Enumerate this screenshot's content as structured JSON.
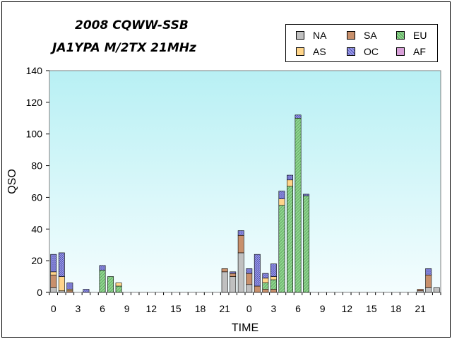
{
  "title_line1": "2008 CQWW-SSB",
  "title_line2": "JA1YPA M/2TX  21MHz",
  "legend": [
    {
      "name": "NA",
      "color": "#c0c0c0",
      "pattern": "solid"
    },
    {
      "name": "SA",
      "color": "#c8906c",
      "pattern": "solid"
    },
    {
      "name": "EU",
      "color": "#8fd48f",
      "pattern": "hatch"
    },
    {
      "name": "AS",
      "color": "#ffd58a",
      "pattern": "solid"
    },
    {
      "name": "OC",
      "color": "#9b9bea",
      "pattern": "cross"
    },
    {
      "name": "AF",
      "color": "#d8a0d8",
      "pattern": "solid"
    }
  ],
  "chart_data": {
    "type": "bar",
    "stacked": true,
    "xlabel": "TIME",
    "ylabel": "QSO",
    "ylim": [
      0,
      140
    ],
    "yticks": [
      0,
      20,
      40,
      60,
      80,
      100,
      120,
      140
    ],
    "xtick_labels": [
      "0",
      "3",
      "6",
      "9",
      "12",
      "15",
      "18",
      "21",
      "0",
      "3",
      "6",
      "9",
      "12",
      "15",
      "18",
      "21"
    ],
    "categories": [
      "0",
      "1",
      "2",
      "3",
      "4",
      "5",
      "6",
      "7",
      "8",
      "9",
      "10",
      "11",
      "12",
      "13",
      "14",
      "15",
      "16",
      "17",
      "18",
      "19",
      "20",
      "21",
      "22",
      "23",
      "0",
      "1",
      "2",
      "3",
      "4",
      "5",
      "6",
      "7",
      "8",
      "9",
      "10",
      "11",
      "12",
      "13",
      "14",
      "15",
      "16",
      "17",
      "18",
      "19",
      "20",
      "21",
      "22",
      "23"
    ],
    "series": [
      {
        "name": "NA",
        "values": [
          3,
          1,
          0,
          0,
          0,
          0,
          0,
          0,
          0,
          0,
          0,
          0,
          0,
          0,
          0,
          0,
          0,
          0,
          0,
          0,
          0,
          13,
          10,
          25,
          5,
          0,
          0,
          0,
          0,
          0,
          0,
          0,
          0,
          0,
          0,
          0,
          0,
          0,
          0,
          0,
          0,
          0,
          0,
          0,
          0,
          1,
          3,
          3
        ]
      },
      {
        "name": "SA",
        "values": [
          8,
          0,
          1,
          0,
          0,
          0,
          0,
          0,
          0,
          0,
          0,
          0,
          0,
          0,
          0,
          0,
          0,
          0,
          0,
          0,
          0,
          2,
          2,
          11,
          7,
          4,
          2,
          2,
          0,
          0,
          0,
          0,
          0,
          0,
          0,
          0,
          0,
          0,
          0,
          0,
          0,
          0,
          0,
          0,
          0,
          1,
          8,
          0
        ]
      },
      {
        "name": "EU",
        "values": [
          0,
          0,
          0,
          0,
          0,
          0,
          14,
          10,
          4,
          0,
          0,
          0,
          0,
          0,
          0,
          0,
          0,
          0,
          0,
          0,
          0,
          0,
          0,
          0,
          0,
          0,
          4,
          6,
          55,
          67,
          110,
          61,
          0,
          0,
          0,
          0,
          0,
          0,
          0,
          0,
          0,
          0,
          0,
          0,
          0,
          0,
          0,
          0
        ]
      },
      {
        "name": "AS",
        "values": [
          2,
          9,
          1,
          0,
          0,
          0,
          0,
          0,
          2,
          0,
          0,
          0,
          0,
          0,
          0,
          0,
          0,
          0,
          0,
          0,
          0,
          0,
          0,
          0,
          0,
          0,
          3,
          2,
          4,
          4,
          0,
          0,
          0,
          0,
          0,
          0,
          0,
          0,
          0,
          0,
          0,
          0,
          0,
          0,
          0,
          0,
          0,
          0
        ]
      },
      {
        "name": "OC",
        "values": [
          11,
          15,
          4,
          0,
          2,
          0,
          3,
          0,
          0,
          0,
          0,
          0,
          0,
          0,
          0,
          0,
          0,
          0,
          0,
          0,
          0,
          0,
          1,
          3,
          3,
          20,
          3,
          8,
          5,
          3,
          2,
          1,
          0,
          0,
          0,
          0,
          0,
          0,
          0,
          0,
          0,
          0,
          0,
          0,
          0,
          0,
          4,
          0
        ]
      },
      {
        "name": "AF",
        "values": [
          0,
          0,
          0,
          0,
          0,
          0,
          0,
          0,
          0,
          0,
          0,
          0,
          0,
          0,
          0,
          0,
          0,
          0,
          0,
          0,
          0,
          0,
          0,
          0,
          0,
          0,
          0,
          0,
          0,
          0,
          0,
          0,
          0,
          0,
          0,
          0,
          0,
          0,
          0,
          0,
          0,
          0,
          0,
          0,
          0,
          0,
          0,
          0
        ]
      }
    ],
    "grid": false,
    "legend_position": "top-right",
    "plot_background": "light cyan gradient"
  }
}
